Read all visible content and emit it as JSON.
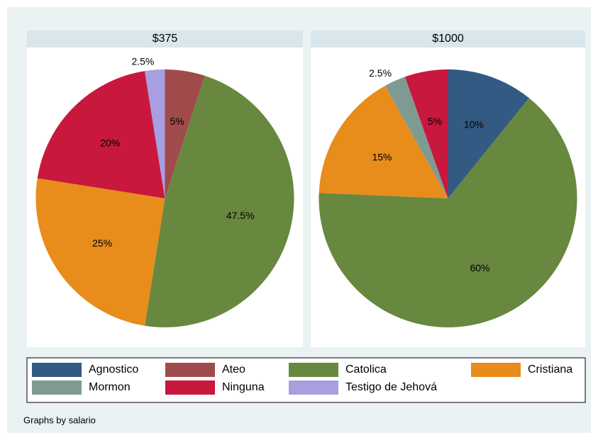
{
  "chart_data": [
    {
      "type": "pie",
      "title": "$375",
      "categories": [
        "Ateo",
        "Catolica",
        "Cristiana",
        "Ninguna",
        "Testigo de Jehová"
      ],
      "values": [
        5,
        47.5,
        25,
        20,
        2.5
      ],
      "value_labels": [
        "5%",
        "47.5%",
        "25%",
        "20%",
        "2.5%"
      ]
    },
    {
      "type": "pie",
      "title": "$1000",
      "categories": [
        "Agnostico",
        "Catolica",
        "Cristiana",
        "Mormon",
        "Ninguna"
      ],
      "values": [
        10,
        60,
        15,
        2.5,
        5
      ],
      "value_labels": [
        "10%",
        "60%",
        "15%",
        "2.5%",
        "5%"
      ]
    }
  ],
  "legend": {
    "categories": [
      "Agnostico",
      "Ateo",
      "Catolica",
      "Cristiana",
      "Mormon",
      "Ninguna",
      "Testigo de Jehová"
    ],
    "colors": [
      "#325a82",
      "#a04b4b",
      "#67883e",
      "#e88c1c",
      "#7f9b91",
      "#c8183e",
      "#a79fe0"
    ]
  },
  "note": "Graphs by salario"
}
